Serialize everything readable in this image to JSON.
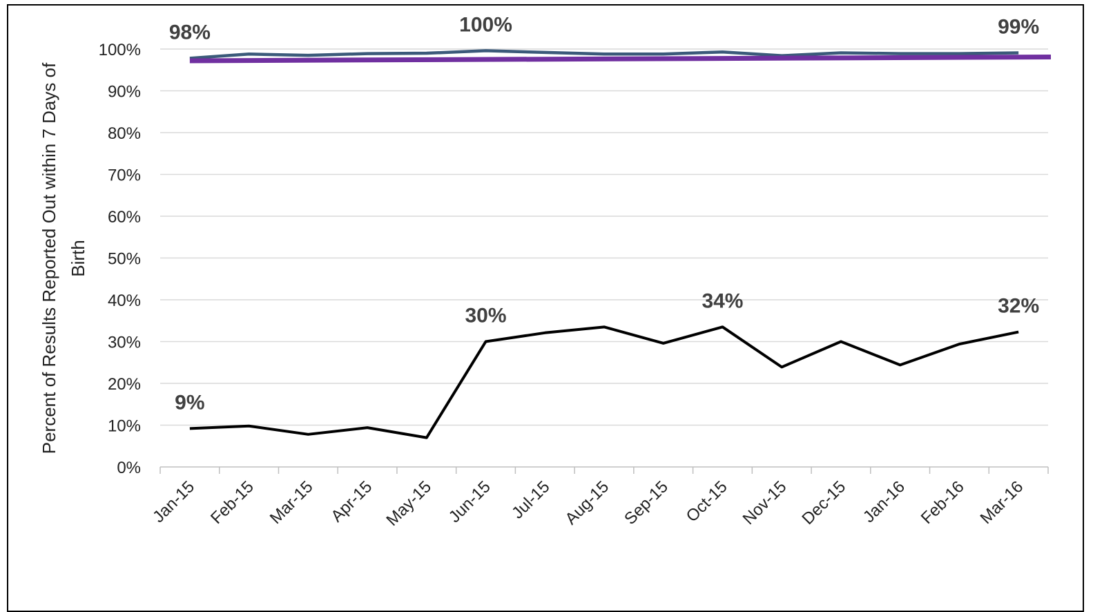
{
  "chart_data": {
    "type": "line",
    "title": "",
    "xlabel": "",
    "ylabel_lines": [
      "Percent of Results Reported Out within 7 Days of",
      "Birth"
    ],
    "categories": [
      "Jan-15",
      "Feb-15",
      "Mar-15",
      "Apr-15",
      "May-15",
      "Jun-15",
      "Jul-15",
      "Aug-15",
      "Sep-15",
      "Oct-15",
      "Nov-15",
      "Dec-15",
      "Jan-16",
      "Feb-16",
      "Mar-16"
    ],
    "ylim": [
      0,
      100
    ],
    "yticks": [
      0,
      10,
      20,
      30,
      40,
      50,
      60,
      70,
      80,
      90,
      100
    ],
    "ytick_labels": [
      "0%",
      "10%",
      "20%",
      "30%",
      "40%",
      "50%",
      "60%",
      "70%",
      "80%",
      "90%",
      "100%"
    ],
    "grid": true,
    "legend": "none",
    "series": [
      {
        "color": "#3B5A7A",
        "values": [
          97.8,
          98.8,
          98.5,
          98.9,
          99.0,
          99.6,
          99.2,
          98.8,
          98.8,
          99.3,
          98.4,
          99.1,
          98.9,
          98.9,
          99.1
        ],
        "labels": [
          {
            "index": 0,
            "text": "98%"
          },
          {
            "index": 5,
            "text": "100%"
          },
          {
            "index": 14,
            "text": "99%"
          }
        ]
      },
      {
        "color": "#7030A0",
        "trendline": true,
        "values_start": 97.2,
        "values_end": 98.1
      },
      {
        "color": "#000000",
        "values": [
          9.2,
          9.8,
          7.8,
          9.4,
          7.0,
          30.0,
          32.1,
          33.5,
          29.6,
          33.5,
          23.9,
          30.0,
          24.4,
          29.4,
          32.3
        ],
        "labels": [
          {
            "index": 0,
            "text": "9%"
          },
          {
            "index": 5,
            "text": "30%"
          },
          {
            "index": 9,
            "text": "34%"
          },
          {
            "index": 14,
            "text": "32%"
          }
        ]
      }
    ]
  }
}
